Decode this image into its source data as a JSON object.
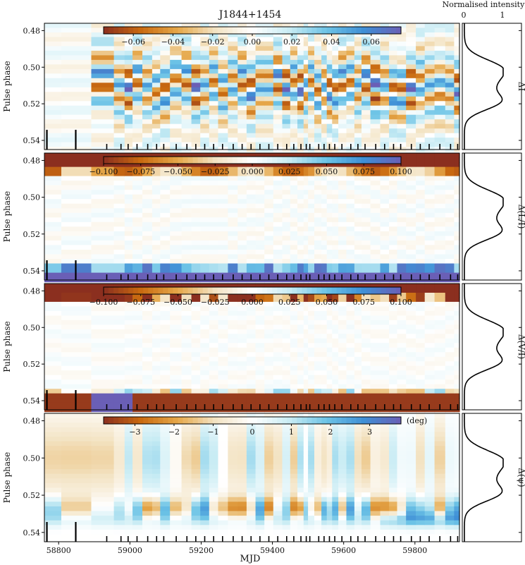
{
  "chart_data": {
    "type": "heatmap",
    "title": "J1844+1454",
    "xlabel": "MJD",
    "xlim": [
      58760,
      59925
    ],
    "x_ticks": [
      "58800",
      "59000",
      "59200",
      "59400",
      "59600",
      "59800"
    ],
    "x_tick_values": [
      58800,
      59000,
      59200,
      59400,
      59600,
      59800
    ],
    "ylabel": "Pulse phase",
    "ylim": [
      0.476,
      0.545
    ],
    "y_ticks": [
      "0.48",
      "0.50",
      "0.52",
      "0.54"
    ],
    "y_tick_values": [
      0.48,
      0.5,
      0.52,
      0.54
    ],
    "profile_label": "Normalised intensity",
    "profile_ticks": [
      "0",
      "1"
    ],
    "observation_mjds": [
      58767,
      58848,
      58935,
      58975,
      58995,
      59020,
      59050,
      59075,
      59095,
      59130,
      59160,
      59185,
      59210,
      59235,
      59260,
      59290,
      59315,
      59340,
      59365,
      59390,
      59415,
      59440,
      59460,
      59480,
      59495,
      59505,
      59530,
      59545,
      59560,
      59575,
      59595,
      59620,
      59640,
      59660,
      59690,
      59715,
      59740,
      59760,
      59790,
      59815,
      59840,
      59870,
      59900,
      59920
    ],
    "tall_marks": [
      58767,
      58848
    ],
    "panels": [
      {
        "id": "delta_I",
        "ylabel": "Pulse phase",
        "side_label": "ΔI",
        "colorbar_ticks": [
          "−0.06",
          "−0.04",
          "−0.02",
          "0.00",
          "0.02",
          "0.04",
          "0.06"
        ],
        "colorbar_values": [
          -0.06,
          -0.04,
          -0.02,
          0.0,
          0.02,
          0.04,
          0.06
        ],
        "colorbar_range": [
          -0.075,
          0.075
        ],
        "colorbar_unit": ""
      },
      {
        "id": "delta_L",
        "ylabel": "Pulse phase",
        "side_label": "Δ(L/I)",
        "colorbar_ticks": [
          "−0.100",
          "−0.075",
          "−0.050",
          "−0.025",
          "0.000",
          "0.025",
          "0.050",
          "0.075",
          "0.100"
        ],
        "colorbar_values": [
          -0.1,
          -0.075,
          -0.05,
          -0.025,
          0.0,
          0.025,
          0.05,
          0.075,
          0.1
        ],
        "colorbar_range": [
          -0.1,
          0.1
        ],
        "colorbar_unit": ""
      },
      {
        "id": "delta_V",
        "ylabel": "Pulse phase",
        "side_label": "Δ(V/I)",
        "colorbar_ticks": [
          "−0.100",
          "−0.075",
          "−0.050",
          "−0.025",
          "0.000",
          "0.025",
          "0.050",
          "0.075",
          "0.100"
        ],
        "colorbar_values": [
          -0.1,
          -0.075,
          -0.05,
          -0.025,
          0.0,
          0.025,
          0.05,
          0.075,
          0.1
        ],
        "colorbar_range": [
          -0.1,
          0.1
        ],
        "colorbar_unit": ""
      },
      {
        "id": "delta_psi",
        "ylabel": "Pulse phase",
        "side_label": "Δ(ψ)",
        "colorbar_ticks": [
          "−3",
          "−2",
          "−1",
          "0",
          "1",
          "2",
          "3"
        ],
        "colorbar_values": [
          -3,
          -2,
          -1,
          0,
          1,
          2,
          3
        ],
        "colorbar_range": [
          -3.8,
          3.8
        ],
        "colorbar_unit": "(deg)"
      }
    ],
    "colormap": [
      "#8b2f1f",
      "#c96a10",
      "#e6a84a",
      "#f3e3c3",
      "#ffffff",
      "#c9ecf4",
      "#6cc3e6",
      "#3f8fd6",
      "#6a5fb6"
    ]
  }
}
